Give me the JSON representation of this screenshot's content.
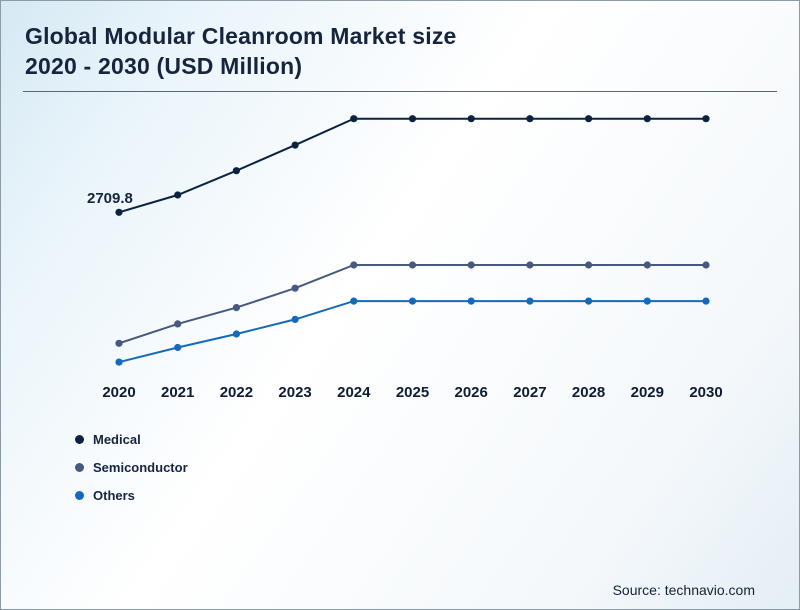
{
  "title": {
    "line1": "Global Modular Cleanroom Market size",
    "line2": "2020 - 2030 (USD Million)"
  },
  "source": "Source: technavio.com",
  "chart_data": {
    "type": "line",
    "title": "Global Modular Cleanroom Market size 2020 - 2030 (USD Million)",
    "categories": [
      "2020",
      "2021",
      "2022",
      "2023",
      "2024",
      "2025",
      "2026",
      "2027",
      "2028",
      "2029",
      "2030"
    ],
    "series": [
      {
        "name": "Medical",
        "color": "#0c2340",
        "values": [
          2709.8,
          2960,
          3310,
          3680,
          4060,
          4060,
          4060,
          4060,
          4060,
          4060,
          4060
        ]
      },
      {
        "name": "Semiconductor",
        "color": "#47597e",
        "values": [
          820,
          1100,
          1335,
          1615,
          1950,
          1950,
          1950,
          1950,
          1950,
          1950,
          1950
        ]
      },
      {
        "name": "Others",
        "color": "#1569bd",
        "values": [
          550,
          760,
          955,
          1165,
          1430,
          1430,
          1430,
          1430,
          1430,
          1430,
          1430
        ]
      }
    ],
    "ylim": [
      450,
      4200
    ],
    "grid": false,
    "markers": true,
    "legend_position": "bottom-left",
    "annotations": [
      {
        "text": "2709.8",
        "series": "Medical",
        "x": "2020"
      }
    ]
  }
}
